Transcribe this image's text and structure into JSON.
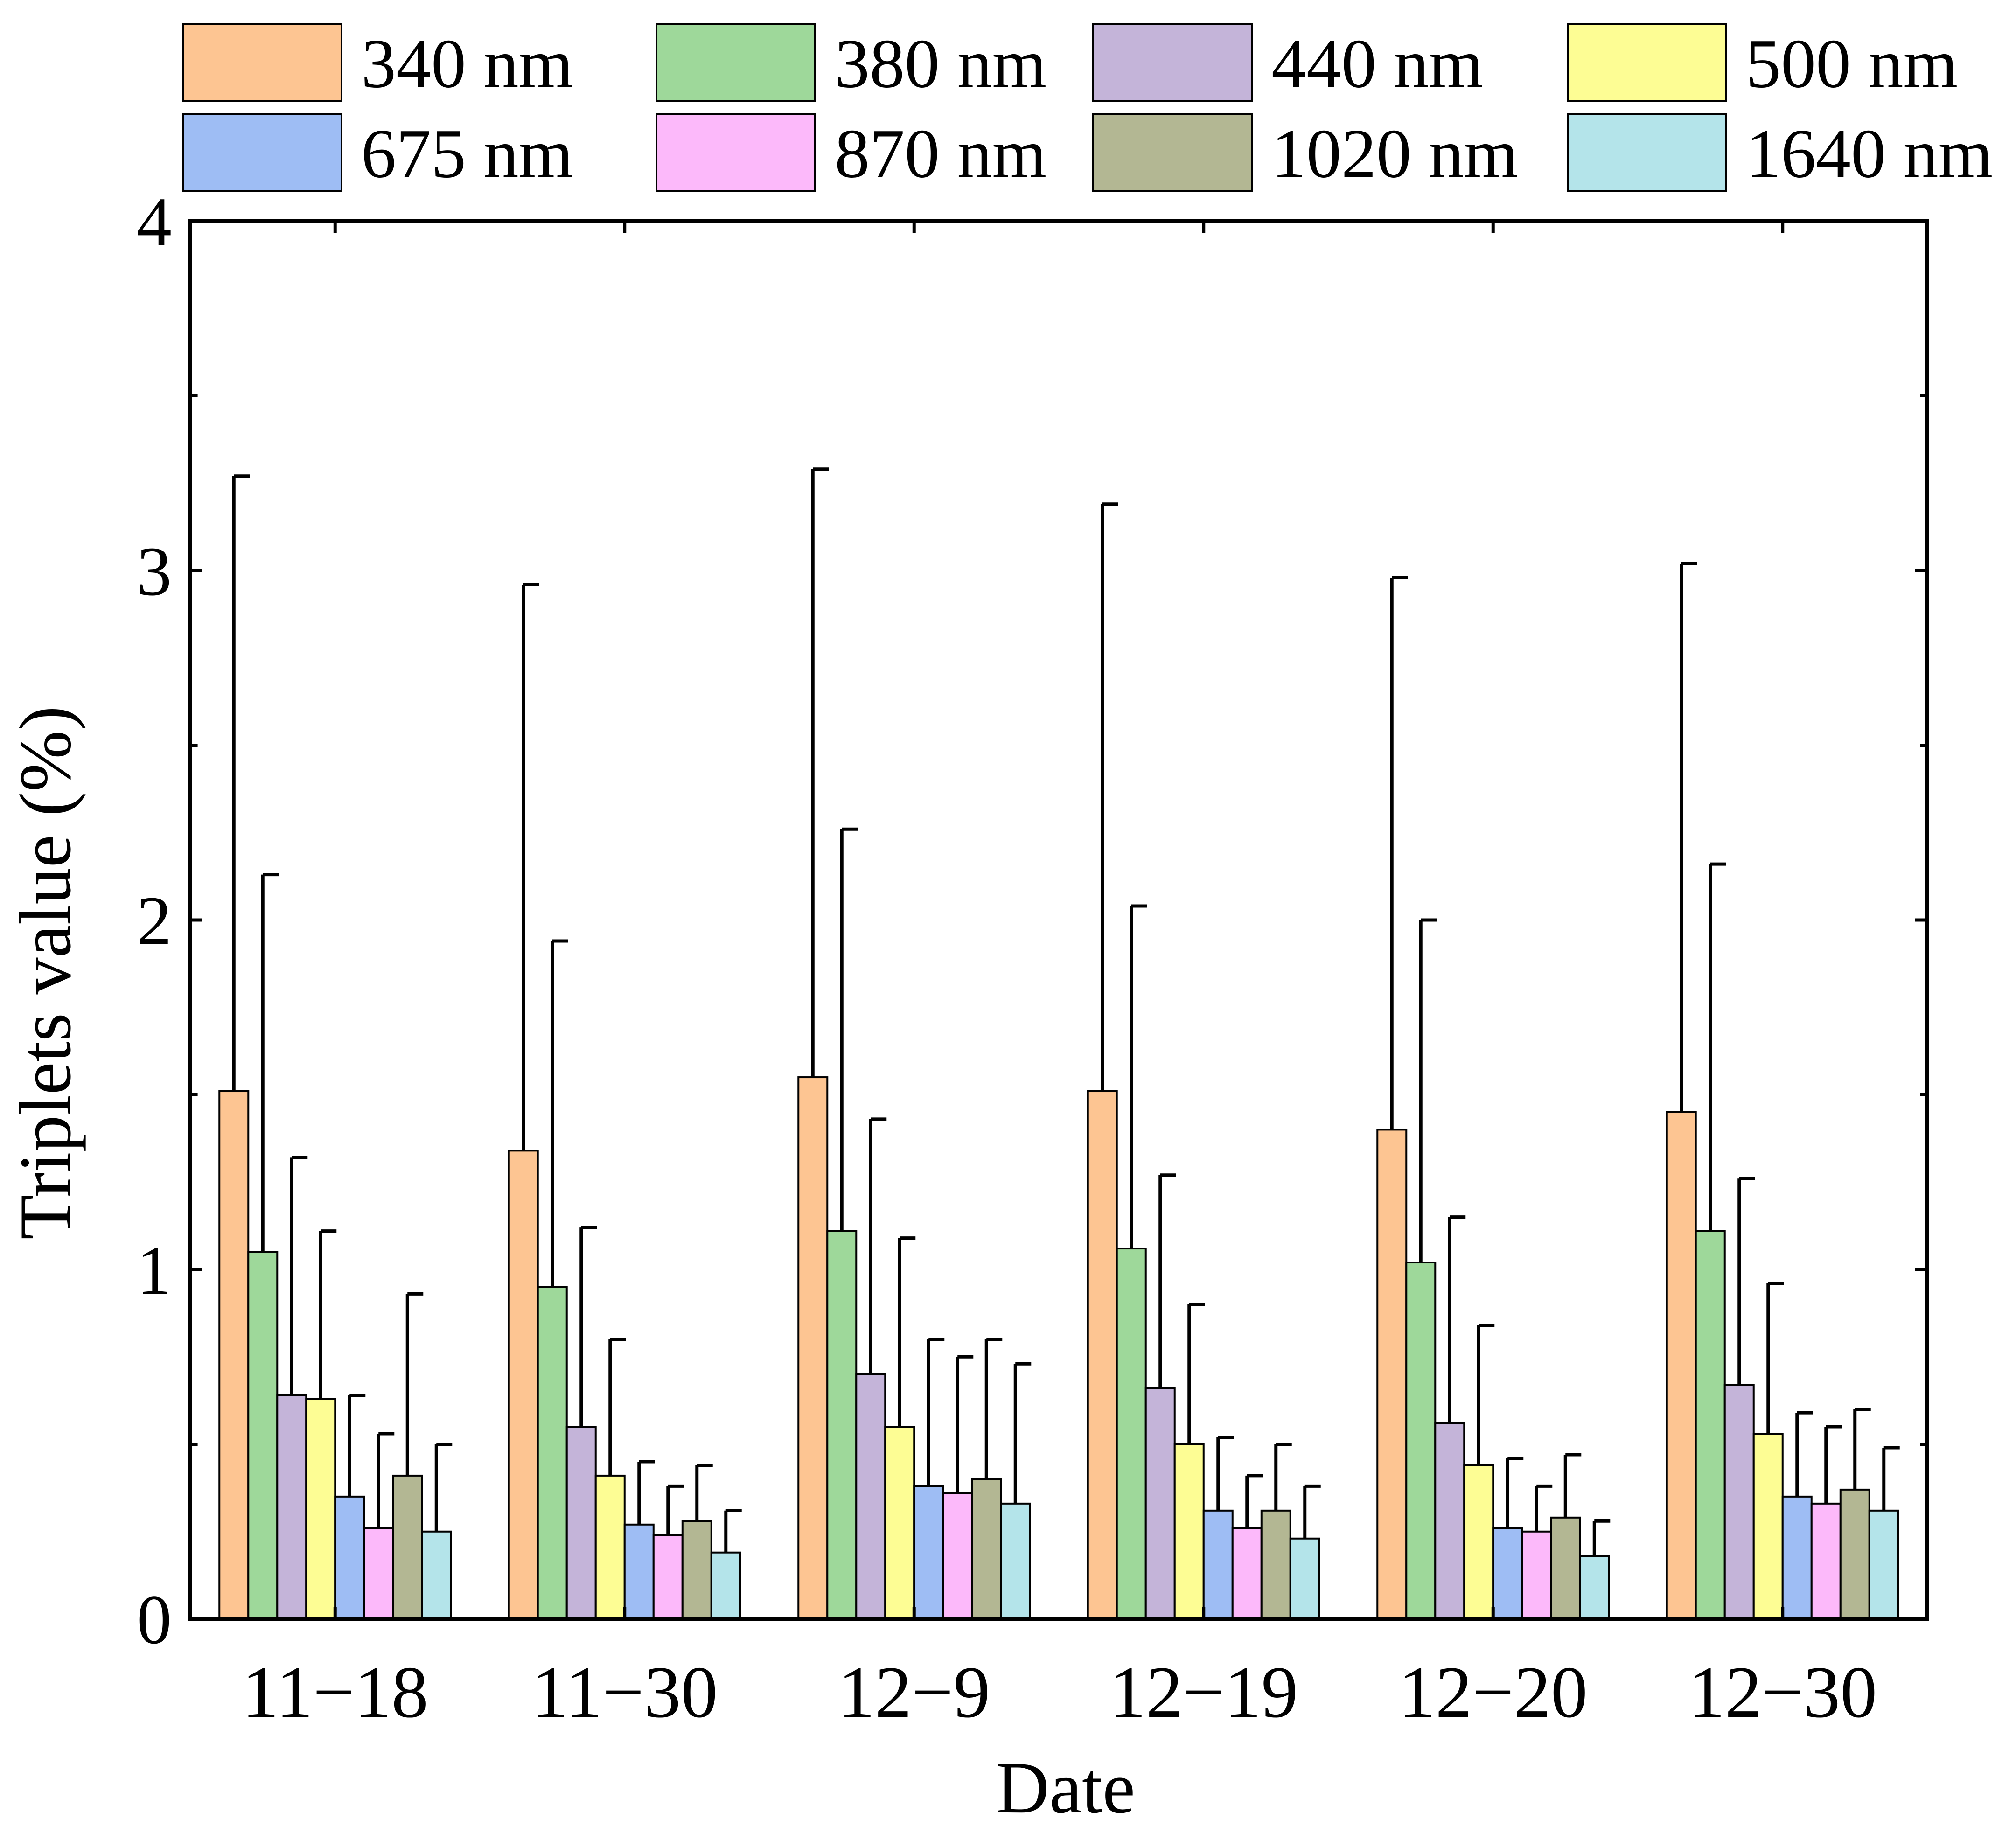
{
  "chart_data": {
    "type": "bar",
    "title": "",
    "xlabel": "Date",
    "ylabel": "Triplets value (%)",
    "ylim": [
      0,
      4
    ],
    "yticks": [
      "0",
      "1",
      "2",
      "3",
      "4"
    ],
    "grid": false,
    "legend_position": "top",
    "error_bars": true,
    "categories": [
      "11−18",
      "11−30",
      "12−9",
      "12−19",
      "12−20",
      "12−30"
    ],
    "series": [
      {
        "name": "340 nm",
        "color": "#FDC592",
        "values": [
          1.51,
          1.34,
          1.55,
          1.51,
          1.4,
          1.45
        ],
        "error": [
          1.76,
          1.62,
          1.74,
          1.68,
          1.58,
          1.57
        ]
      },
      {
        "name": "380 nm",
        "color": "#9ED89A",
        "values": [
          1.05,
          0.95,
          1.11,
          1.06,
          1.02,
          1.11
        ],
        "error": [
          1.08,
          0.99,
          1.15,
          0.98,
          0.98,
          1.05
        ]
      },
      {
        "name": "440 nm",
        "color": "#C4B4D9",
        "values": [
          0.64,
          0.55,
          0.7,
          0.66,
          0.56,
          0.67
        ],
        "error": [
          0.68,
          0.57,
          0.73,
          0.61,
          0.59,
          0.59
        ]
      },
      {
        "name": "500 nm",
        "color": "#FDFD94",
        "values": [
          0.63,
          0.41,
          0.55,
          0.5,
          0.44,
          0.53
        ],
        "error": [
          0.48,
          0.39,
          0.54,
          0.4,
          0.4,
          0.43
        ]
      },
      {
        "name": "675 nm",
        "color": "#9EBDF4",
        "values": [
          0.35,
          0.27,
          0.38,
          0.31,
          0.26,
          0.35
        ],
        "error": [
          0.29,
          0.18,
          0.42,
          0.21,
          0.2,
          0.24
        ]
      },
      {
        "name": "870 nm",
        "color": "#FCB9FA",
        "values": [
          0.26,
          0.24,
          0.36,
          0.26,
          0.25,
          0.33
        ],
        "error": [
          0.27,
          0.14,
          0.39,
          0.15,
          0.13,
          0.22
        ]
      },
      {
        "name": "1020 nm",
        "color": "#B3B793",
        "values": [
          0.41,
          0.28,
          0.4,
          0.31,
          0.29,
          0.37
        ],
        "error": [
          0.52,
          0.16,
          0.4,
          0.19,
          0.18,
          0.23
        ]
      },
      {
        "name": "1640 nm",
        "color": "#B4E4EA",
        "values": [
          0.25,
          0.19,
          0.33,
          0.23,
          0.18,
          0.31
        ],
        "error": [
          0.25,
          0.12,
          0.4,
          0.15,
          0.1,
          0.18
        ]
      }
    ]
  }
}
